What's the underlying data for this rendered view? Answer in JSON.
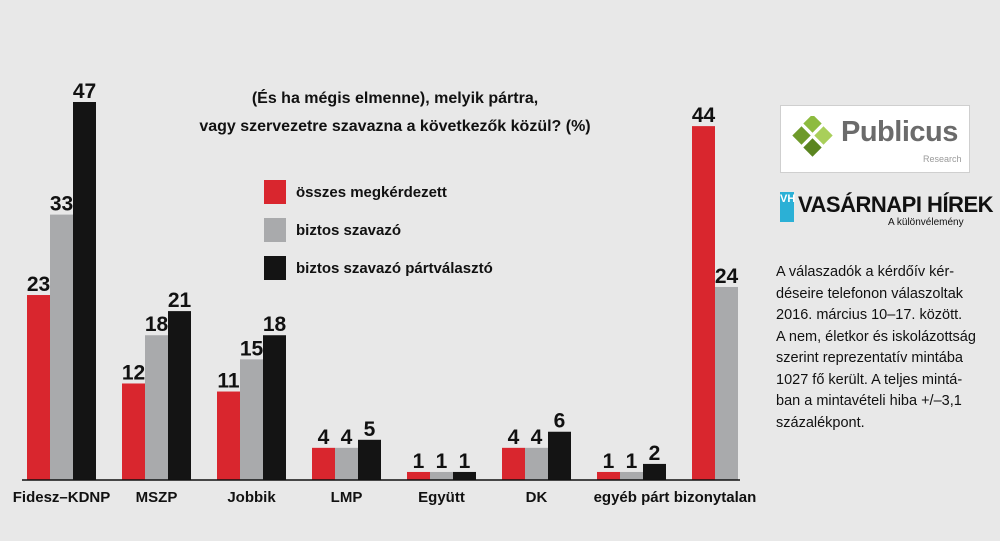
{
  "chart_data": {
    "type": "bar",
    "title": [
      "(És ha mégis elmenne), melyik pártra,",
      "vagy szervezetre szavazna a következők közül? (%)"
    ],
    "categories": [
      "Fidesz–KDNP",
      "MSZP",
      "Jobbik",
      "LMP",
      "Együtt",
      "DK",
      "egyéb párt",
      "bizonytalan"
    ],
    "series": [
      {
        "name": "összes megkérdezett",
        "color": "#d9262e",
        "values": [
          23,
          12,
          11,
          4,
          1,
          4,
          1,
          44
        ]
      },
      {
        "name": "biztos szavazó",
        "color": "#a9aaac",
        "values": [
          33,
          18,
          15,
          4,
          1,
          4,
          1,
          24
        ]
      },
      {
        "name": "biztos szavazó pártválasztó",
        "color": "#141414",
        "values": [
          47,
          21,
          18,
          5,
          1,
          6,
          2,
          null
        ]
      }
    ],
    "ylim": [
      0,
      47
    ],
    "grid": false,
    "legend_position": "top-center"
  },
  "sidebar": {
    "logo_name": "Publicus",
    "logo_sub": "Research",
    "publisher_mark": "VH",
    "publisher_name": "VASÁRNAPI HÍREK",
    "publisher_tagline": "A különvélemény",
    "note_lines": [
      "A válaszadók a kérdőív kér-",
      "déseire telefonon válaszoltak",
      "2016. március 10–17. között.",
      "A nem, életkor és iskolázottság",
      "szerint reprezentatív mintába",
      "1027 fő került. A teljes mintá-",
      "ban a mintavételi hiba +/–3,1",
      "százalékpont."
    ]
  }
}
